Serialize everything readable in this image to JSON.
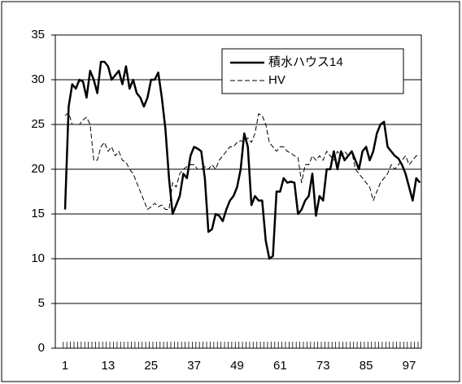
{
  "chart_data": {
    "type": "line",
    "categories": [
      "1",
      null,
      null,
      null,
      null,
      null,
      null,
      null,
      null,
      null,
      null,
      null,
      "13",
      null,
      null,
      null,
      null,
      null,
      null,
      null,
      null,
      null,
      null,
      null,
      "25",
      null,
      null,
      null,
      null,
      null,
      null,
      null,
      null,
      null,
      null,
      null,
      "37",
      null,
      null,
      null,
      null,
      null,
      null,
      null,
      null,
      null,
      null,
      null,
      "49",
      null,
      null,
      null,
      null,
      null,
      null,
      null,
      null,
      null,
      null,
      null,
      "61",
      null,
      null,
      null,
      null,
      null,
      null,
      null,
      null,
      null,
      null,
      null,
      "73",
      null,
      null,
      null,
      null,
      null,
      null,
      null,
      null,
      null,
      null,
      null,
      "85",
      null,
      null,
      null,
      null,
      null,
      null,
      null,
      null,
      null,
      null,
      null,
      "97",
      null,
      null,
      null
    ],
    "series": [
      {
        "name": "積水ハウス14",
        "color": "#000000",
        "dashed": false,
        "values": [
          15.5,
          27,
          29.5,
          29,
          30,
          29.8,
          28,
          31,
          30,
          28.5,
          32,
          32,
          31.5,
          30,
          30.5,
          31,
          29.5,
          31.5,
          29,
          30,
          28.5,
          28,
          27,
          28,
          30,
          30,
          30.8,
          28,
          24.5,
          19,
          15,
          16,
          17,
          19.5,
          19,
          21.5,
          22.5,
          22.3,
          22,
          19,
          13,
          13.3,
          15,
          14.8,
          14.2,
          15.5,
          16.5,
          17,
          18,
          20,
          24,
          22.5,
          16,
          17,
          16.5,
          16.5,
          12,
          10,
          10.3,
          17.5,
          17.5,
          19,
          18.5,
          18.6,
          18.5,
          15,
          15.5,
          16.5,
          17,
          19.5,
          14.8,
          17,
          16.5,
          20,
          20,
          22,
          20,
          22,
          21,
          21.5,
          22,
          21,
          20,
          22,
          22.5,
          21,
          22,
          24,
          25,
          25.3,
          22.5,
          22,
          21.5,
          21.2,
          20.5,
          19.5,
          18,
          16.5,
          19,
          18.5
        ]
      },
      {
        "name": "HV",
        "color": "#000000",
        "dashed": true,
        "values": [
          26,
          26.3,
          25,
          25,
          25,
          25.5,
          25.8,
          25,
          21,
          21,
          22.5,
          23,
          22,
          22.5,
          21.5,
          22,
          21,
          20.8,
          20,
          19.5,
          18.5,
          17.5,
          16.5,
          15.5,
          15.8,
          16.2,
          15.8,
          16,
          15.5,
          15.5,
          18.5,
          18,
          19.5,
          20,
          20.3,
          20.5,
          20.5,
          20,
          20,
          20.3,
          20,
          20.5,
          20,
          21,
          21.5,
          22,
          22.5,
          22.5,
          23,
          23.2,
          23,
          23.5,
          23,
          24,
          26.2,
          26,
          25,
          23,
          22.5,
          22,
          22.5,
          22.5,
          22,
          21.8,
          21.5,
          21.3,
          18.5,
          20.5,
          20.5,
          21.5,
          21,
          21.5,
          21,
          22,
          21.5,
          21,
          22,
          21.5,
          22,
          21.5,
          22,
          20,
          19.5,
          19,
          18.5,
          18,
          16.5,
          17.5,
          18.5,
          19,
          19.5,
          20.5,
          20,
          20.5,
          21,
          21.5,
          20.5,
          21,
          21.5,
          21.5
        ]
      }
    ],
    "ylim": [
      0,
      35
    ],
    "yticks": [
      0,
      5,
      10,
      15,
      20,
      25,
      30,
      35
    ],
    "grid": true,
    "legend": "upper right"
  }
}
